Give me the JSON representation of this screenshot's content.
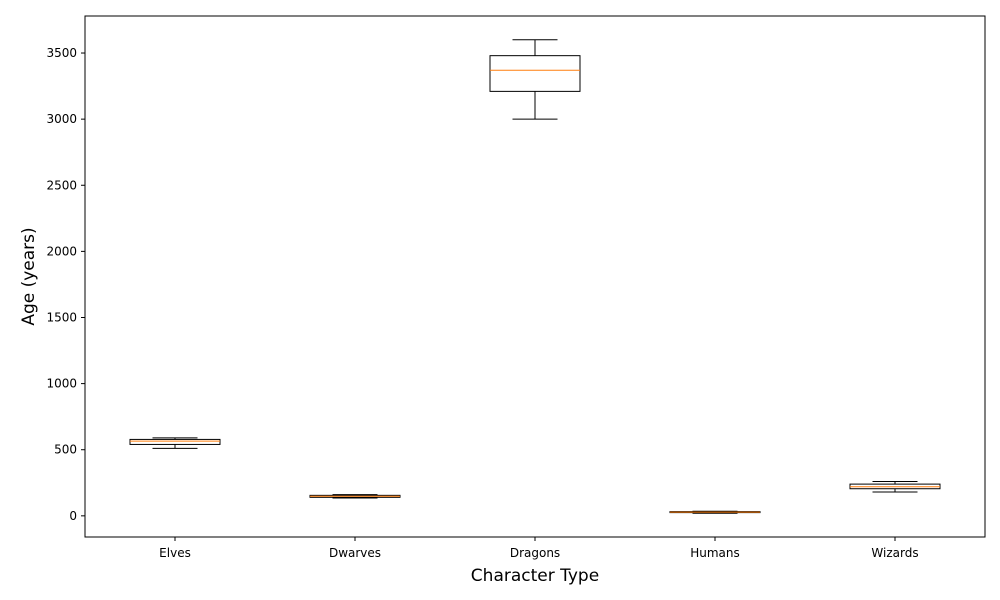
{
  "chart_data": {
    "type": "box",
    "title": "",
    "xlabel": "Character Type",
    "ylabel": "Age (years)",
    "ylim": [
      -160,
      3780
    ],
    "yticks": [
      0,
      500,
      1000,
      1500,
      2000,
      2500,
      3000,
      3500
    ],
    "categories": [
      "Elves",
      "Dwarves",
      "Dragons",
      "Humans",
      "Wizards"
    ],
    "boxes": [
      {
        "category": "Elves",
        "whisker_low": 510,
        "q1": 540,
        "median": 565,
        "q3": 578,
        "whisker_high": 590
      },
      {
        "category": "Dwarves",
        "whisker_low": 135,
        "q1": 140,
        "median": 148,
        "q3": 155,
        "whisker_high": 160
      },
      {
        "category": "Dragons",
        "whisker_low": 3000,
        "q1": 3210,
        "median": 3370,
        "q3": 3480,
        "whisker_high": 3600
      },
      {
        "category": "Humans",
        "whisker_low": 20,
        "q1": 25,
        "median": 28,
        "q3": 32,
        "whisker_high": 35
      },
      {
        "category": "Wizards",
        "whisker_low": 180,
        "q1": 205,
        "median": 220,
        "q3": 240,
        "whisker_high": 260
      }
    ],
    "grid": false,
    "colors": {
      "box": "#000000",
      "median": "#ff7f0e",
      "axes": "#000000"
    }
  }
}
